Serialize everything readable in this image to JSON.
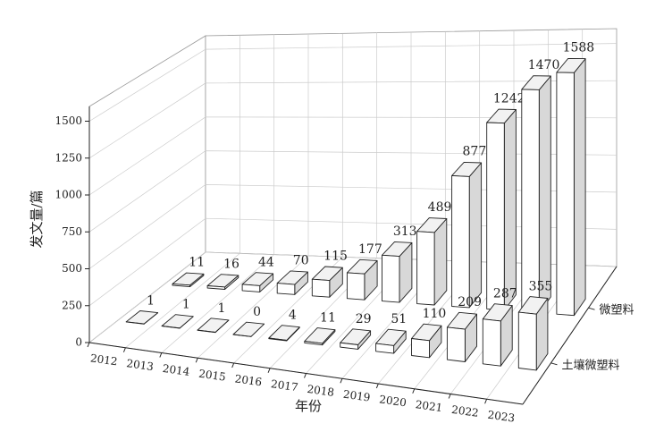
{
  "chart_data": {
    "type": "bar3d",
    "y_label": "发文量/篇",
    "x_label": "年份",
    "categories": [
      "2012",
      "2013",
      "2014",
      "2015",
      "2016",
      "2017",
      "2018",
      "2019",
      "2020",
      "2021",
      "2022",
      "2023"
    ],
    "series": [
      {
        "name": "土壤微塑料",
        "color": "#ffffff",
        "values": [
          1,
          1,
          1,
          0,
          4,
          11,
          29,
          51,
          110,
          209,
          287,
          355
        ]
      },
      {
        "name": "微塑料",
        "color": "#ffffff",
        "values": [
          11,
          16,
          44,
          70,
          115,
          177,
          313,
          489,
          877,
          1242,
          1470,
          1588
        ]
      }
    ],
    "ylim": [
      0,
      1600
    ],
    "yticks": [
      0,
      250,
      500,
      750,
      1000,
      1250,
      1500
    ],
    "grid": true
  }
}
